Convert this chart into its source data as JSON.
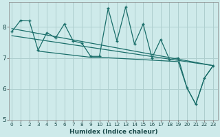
{
  "xlabel": "Humidex (Indice chaleur)",
  "background_color": "#ceeaea",
  "grid_color": "#aecece",
  "line_color": "#1a6e6a",
  "x_values": [
    0,
    1,
    2,
    3,
    4,
    5,
    6,
    7,
    8,
    9,
    10,
    11,
    12,
    13,
    14,
    15,
    16,
    17,
    18,
    19,
    20,
    21,
    22,
    23
  ],
  "y_main": [
    7.85,
    8.22,
    8.2,
    7.25,
    7.82,
    7.65,
    8.1,
    7.55,
    7.48,
    7.05,
    7.05,
    8.6,
    7.55,
    8.65,
    7.45,
    8.1,
    7.0,
    7.6,
    6.95,
    7.0,
    6.03,
    5.5,
    6.35,
    6.75
  ],
  "trend1_x": [
    0,
    23
  ],
  "trend1_y": [
    7.95,
    6.75
  ],
  "trend2_x": [
    0,
    23
  ],
  "trend2_y": [
    7.72,
    6.75
  ],
  "trend3_x": [
    3,
    9,
    10,
    19,
    20,
    21,
    22,
    23
  ],
  "trend3_y": [
    7.22,
    7.02,
    7.02,
    6.88,
    6.03,
    5.5,
    6.35,
    6.75
  ],
  "ylim": [
    5.0,
    8.8
  ],
  "yticks": [
    5,
    6,
    7,
    8
  ],
  "xlim": [
    -0.3,
    23.5
  ]
}
